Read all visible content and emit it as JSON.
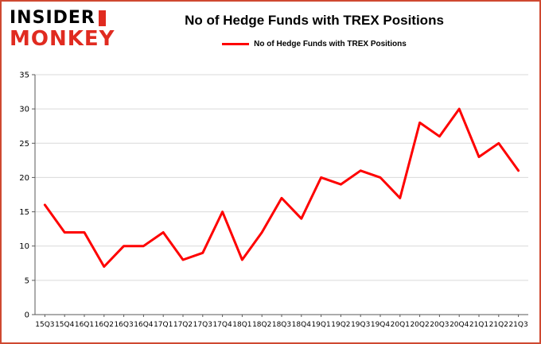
{
  "brand": {
    "line1": "INSIDER",
    "line2": "MONKEY"
  },
  "title": "No of Hedge Funds with TREX Positions",
  "legend": {
    "label": "No of Hedge Funds with TREX Positions",
    "color": "#fe0000"
  },
  "colors": {
    "frame_border": "#cf4931",
    "grid": "#d9d9d9",
    "axis": "#595959",
    "line": "#fe0000",
    "tick_text": "#000000"
  },
  "chart_data": {
    "type": "line",
    "title": "No of Hedge Funds with TREX Positions",
    "xlabel": "",
    "ylabel": "",
    "ylim": [
      0,
      35
    ],
    "yticks": [
      0,
      5,
      10,
      15,
      20,
      25,
      30,
      35
    ],
    "grid": true,
    "legend_position": "top",
    "categories": [
      "15Q3",
      "15Q4",
      "16Q1",
      "16Q2",
      "16Q3",
      "16Q4",
      "17Q1",
      "17Q2",
      "17Q3",
      "17Q4",
      "18Q1",
      "18Q2",
      "18Q3",
      "18Q4",
      "19Q1",
      "19Q2",
      "19Q3",
      "19Q4",
      "20Q1",
      "20Q2",
      "20Q3",
      "20Q4",
      "21Q1",
      "21Q2",
      "21Q3"
    ],
    "series": [
      {
        "name": "No of Hedge Funds with TREX Positions",
        "color": "#fe0000",
        "values": [
          16,
          12,
          12,
          7,
          10,
          10,
          12,
          8,
          9,
          15,
          8,
          12,
          17,
          14,
          20,
          19,
          21,
          20,
          17,
          28,
          26,
          30,
          23,
          25,
          21
        ]
      }
    ]
  }
}
